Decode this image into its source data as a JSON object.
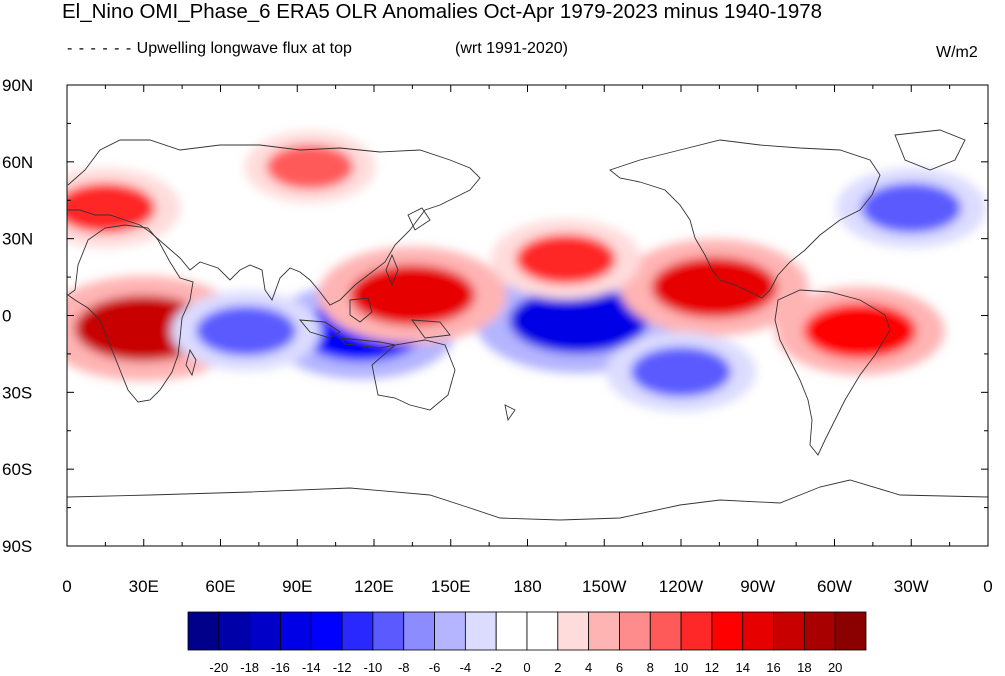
{
  "title": "El_Nino OMI_Phase_6 ERA5 OLR Anomalies Oct-Apr 1979-2023 minus 1940-1978",
  "legend_line": {
    "dash": "- - - - - -",
    "label": "Upwelling longwave flux at top"
  },
  "reference": "(wrt 1991-2020)",
  "units": "W/m2",
  "axes": {
    "y_ticks": [
      "90N",
      "60N",
      "30N",
      "0",
      "30S",
      "60S",
      "90S"
    ],
    "x_ticks": [
      "0",
      "30E",
      "60E",
      "90E",
      "120E",
      "150E",
      "180",
      "150W",
      "120W",
      "90W",
      "60W",
      "30W",
      "0"
    ]
  },
  "colorbar": {
    "labels": [
      "-20",
      "-18",
      "-16",
      "-14",
      "-12",
      "-10",
      "-8",
      "-6",
      "-4",
      "-2",
      "0",
      "2",
      "4",
      "6",
      "8",
      "10",
      "12",
      "14",
      "16",
      "18",
      "20"
    ],
    "colors": [
      "#00008b",
      "#0000a8",
      "#0000c8",
      "#0000e6",
      "#0000ff",
      "#2828ff",
      "#5a5aff",
      "#8c8cff",
      "#b4b4ff",
      "#dcdcff",
      "#ffffff",
      "#ffffff",
      "#ffdcdc",
      "#ffb4b4",
      "#ff8c8c",
      "#ff5a5a",
      "#ff2828",
      "#ff0000",
      "#e60000",
      "#c80000",
      "#a80000",
      "#8b0000"
    ]
  },
  "anomaly_regions": [
    {
      "name": "central-equatorial-pacific-negative",
      "lon": 200,
      "lat": -2,
      "value": -16
    },
    {
      "name": "maritime-continent-negative",
      "lon": 115,
      "lat": -6,
      "value": -14
    },
    {
      "name": "western-pacific-positive",
      "lon": 135,
      "lat": 8,
      "value": 14
    },
    {
      "name": "southern-africa-positive",
      "lon": 30,
      "lat": -5,
      "value": 16
    },
    {
      "name": "central-america-positive",
      "lon": 253,
      "lat": 11,
      "value": 14
    },
    {
      "name": "brazil-positive",
      "lon": 310,
      "lat": -6,
      "value": 12
    },
    {
      "name": "north-pacific-positive",
      "lon": 195,
      "lat": 22,
      "value": 10
    },
    {
      "name": "siberia-positive",
      "lon": 95,
      "lat": 58,
      "value": 8
    },
    {
      "name": "europe-positive",
      "lon": 15,
      "lat": 42,
      "value": 10
    },
    {
      "name": "south-pacific-negative",
      "lon": 240,
      "lat": -22,
      "value": -10
    },
    {
      "name": "north-atlantic-negative",
      "lon": 330,
      "lat": 42,
      "value": -10
    },
    {
      "name": "indian-ocean-negative",
      "lon": 70,
      "lat": -6,
      "value": -10
    }
  ]
}
